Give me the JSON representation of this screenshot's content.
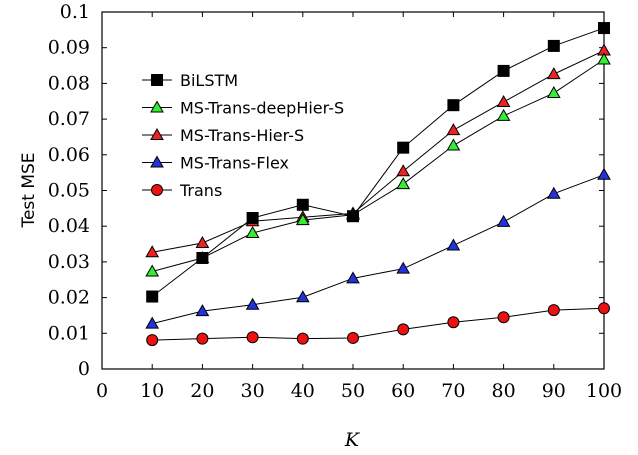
{
  "chart_data": {
    "type": "line",
    "title": "",
    "xlabel": "K",
    "ylabel": "Test MSE",
    "x": [
      10,
      20,
      30,
      40,
      50,
      60,
      70,
      80,
      90,
      100
    ],
    "xlim": [
      0,
      100
    ],
    "ylim": [
      0,
      0.1
    ],
    "xticks": [
      "0",
      "10",
      "20",
      "30",
      "40",
      "50",
      "60",
      "70",
      "80",
      "90",
      "100"
    ],
    "yticks": [
      "0",
      "0.01",
      "0.02",
      "0.03",
      "0.04",
      "0.05",
      "0.06",
      "0.07",
      "0.08",
      "0.09",
      "0.1"
    ],
    "grid": false,
    "legend_position": "upper-left",
    "series": [
      {
        "name": "BiLSTM",
        "marker": "square",
        "color": "#000000",
        "values": [
          0.0203,
          0.0311,
          0.0423,
          0.046,
          0.0428,
          0.062,
          0.0739,
          0.0835,
          0.0905,
          0.0955
        ]
      },
      {
        "name": "MS-Trans-deepHier-S",
        "marker": "triangle",
        "color": "#33ee33",
        "values": [
          0.0273,
          0.0311,
          0.0381,
          0.0417,
          0.0432,
          0.0518,
          0.0626,
          0.0709,
          0.0773,
          0.0867
        ]
      },
      {
        "name": "MS-Trans-Hier-S",
        "marker": "triangle",
        "color": "#ee2222",
        "values": [
          0.0327,
          0.0353,
          0.0414,
          0.0425,
          0.0436,
          0.0554,
          0.0669,
          0.0748,
          0.0826,
          0.0892
        ]
      },
      {
        "name": "MS-Trans-Flex",
        "marker": "triangle",
        "color": "#2233dd",
        "values": [
          0.0127,
          0.0162,
          0.018,
          0.0201,
          0.0254,
          0.0281,
          0.0346,
          0.0412,
          0.0491,
          0.0544
        ]
      },
      {
        "name": "Trans",
        "marker": "circle",
        "color": "#ee1111",
        "values": [
          0.0081,
          0.0085,
          0.0089,
          0.0085,
          0.0087,
          0.0111,
          0.0131,
          0.0145,
          0.0165,
          0.017
        ]
      }
    ]
  }
}
